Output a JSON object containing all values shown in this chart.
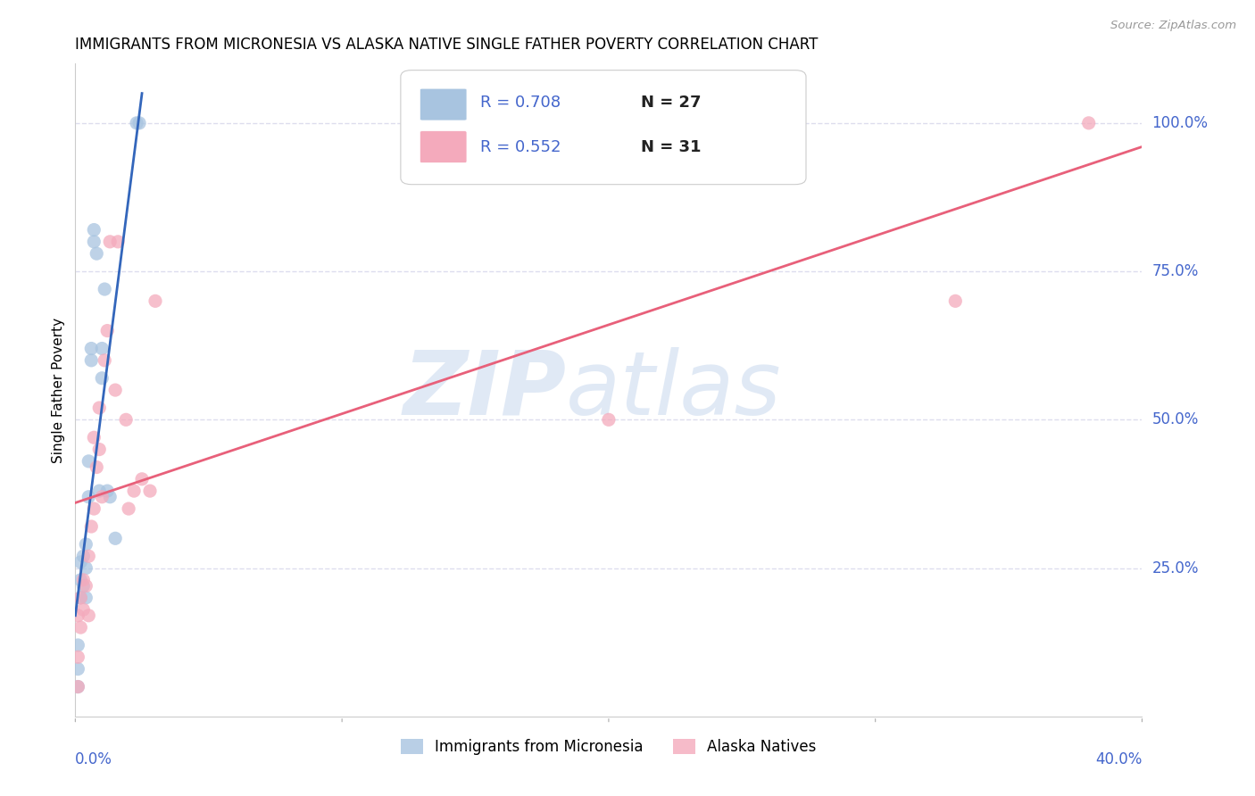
{
  "title": "IMMIGRANTS FROM MICRONESIA VS ALASKA NATIVE SINGLE FATHER POVERTY CORRELATION CHART",
  "source": "Source: ZipAtlas.com",
  "ylabel": "Single Father Poverty",
  "x_label_bottom_left": "0.0%",
  "x_label_bottom_right": "40.0%",
  "y_tick_labels": [
    "25.0%",
    "50.0%",
    "75.0%",
    "100.0%"
  ],
  "y_tick_values": [
    0.25,
    0.5,
    0.75,
    1.0
  ],
  "xlim": [
    0.0,
    0.4
  ],
  "ylim": [
    0.0,
    1.1
  ],
  "blue_R": 0.708,
  "blue_N": 27,
  "pink_R": 0.552,
  "pink_N": 31,
  "blue_color": "#A8C4E0",
  "pink_color": "#F4AABC",
  "blue_line_color": "#3366BB",
  "pink_line_color": "#E8607A",
  "axis_color": "#4466CC",
  "legend_label_blue": "Immigrants from Micronesia",
  "legend_label_pink": "Alaska Natives",
  "watermark_zip": "ZIP",
  "watermark_atlas": "atlas",
  "blue_points_x": [
    0.001,
    0.001,
    0.001,
    0.002,
    0.002,
    0.002,
    0.003,
    0.003,
    0.004,
    0.004,
    0.004,
    0.005,
    0.005,
    0.006,
    0.006,
    0.007,
    0.007,
    0.008,
    0.009,
    0.01,
    0.01,
    0.011,
    0.012,
    0.013,
    0.015,
    0.023,
    0.024
  ],
  "blue_points_y": [
    0.05,
    0.08,
    0.12,
    0.2,
    0.23,
    0.26,
    0.22,
    0.27,
    0.2,
    0.25,
    0.29,
    0.37,
    0.43,
    0.6,
    0.62,
    0.8,
    0.82,
    0.78,
    0.38,
    0.57,
    0.62,
    0.72,
    0.38,
    0.37,
    0.3,
    1.0,
    1.0
  ],
  "pink_points_x": [
    0.001,
    0.001,
    0.001,
    0.002,
    0.002,
    0.003,
    0.003,
    0.004,
    0.005,
    0.005,
    0.006,
    0.007,
    0.007,
    0.008,
    0.009,
    0.009,
    0.01,
    0.011,
    0.012,
    0.013,
    0.015,
    0.016,
    0.019,
    0.02,
    0.022,
    0.025,
    0.028,
    0.03,
    0.2,
    0.33,
    0.38
  ],
  "pink_points_y": [
    0.05,
    0.1,
    0.17,
    0.15,
    0.2,
    0.18,
    0.23,
    0.22,
    0.17,
    0.27,
    0.32,
    0.35,
    0.47,
    0.42,
    0.45,
    0.52,
    0.37,
    0.6,
    0.65,
    0.8,
    0.55,
    0.8,
    0.5,
    0.35,
    0.38,
    0.4,
    0.38,
    0.7,
    0.5,
    0.7,
    1.0
  ],
  "blue_line_x": [
    0.0,
    0.025
  ],
  "blue_line_y": [
    0.17,
    1.05
  ],
  "pink_line_x": [
    0.0,
    0.4
  ],
  "pink_line_y": [
    0.36,
    0.96
  ],
  "bg_color": "#FFFFFF",
  "grid_color": "#DDDDEE",
  "title_fontsize": 12,
  "axis_label_fontsize": 11,
  "tick_fontsize": 12,
  "marker_size": 120
}
